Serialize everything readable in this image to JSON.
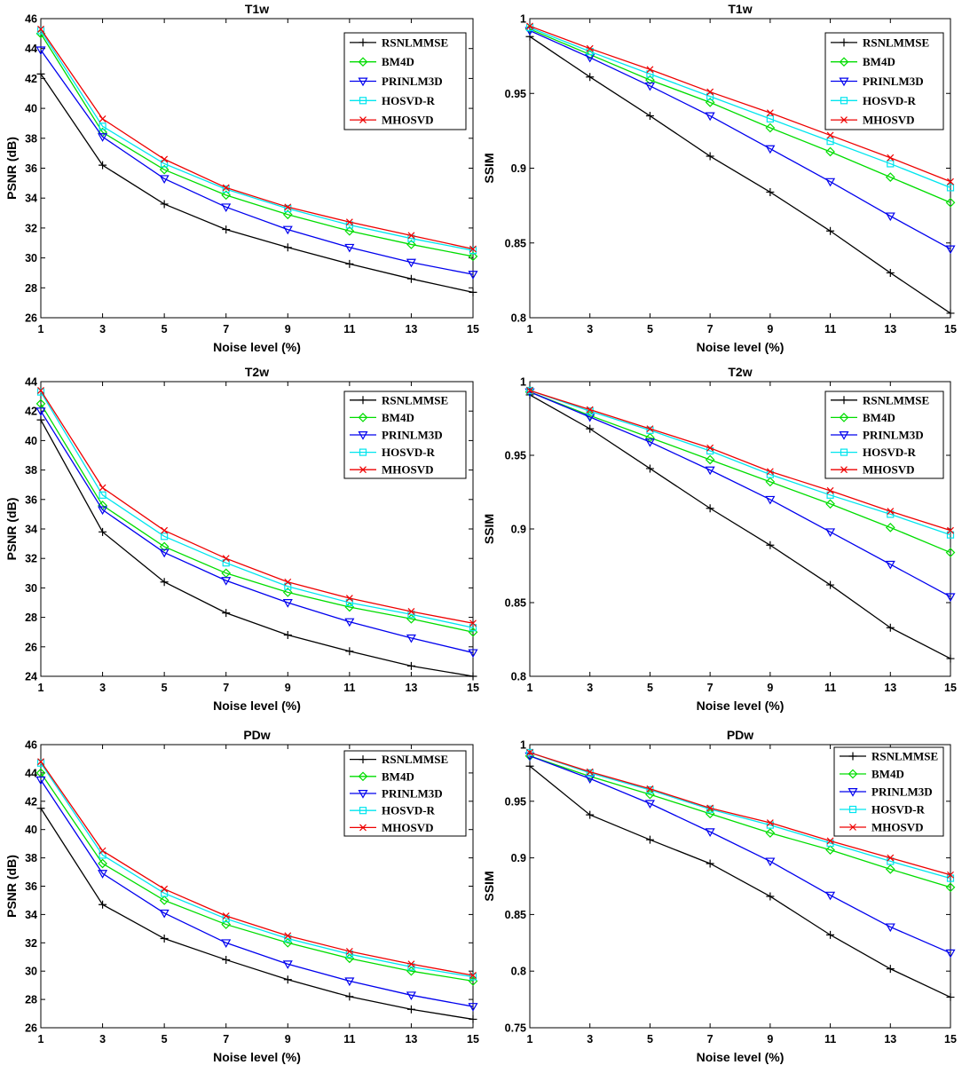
{
  "chart_data": [
    {
      "type": "line",
      "title": "T1w",
      "xlabel": "Noise level (%)",
      "ylabel": "PSNR (dB)",
      "x": [
        1,
        3,
        5,
        7,
        9,
        11,
        13,
        15
      ],
      "xticks": [
        "1",
        "3",
        "5",
        "7",
        "9",
        "11",
        "13",
        "15"
      ],
      "ylim": [
        26,
        46
      ],
      "yticks": [
        "26",
        "28",
        "30",
        "32",
        "34",
        "36",
        "38",
        "40",
        "42",
        "44",
        "46"
      ],
      "legend_position": "top-right",
      "series": [
        {
          "name": "RSNLMMSE",
          "color": "#000000",
          "marker": "plus",
          "values": [
            42.3,
            36.2,
            33.6,
            31.9,
            30.7,
            29.6,
            28.6,
            27.7
          ]
        },
        {
          "name": "BM4D",
          "color": "#00dd00",
          "marker": "diamond",
          "values": [
            45.0,
            38.4,
            35.9,
            34.2,
            32.9,
            31.8,
            30.9,
            30.1
          ]
        },
        {
          "name": "PRINLM3D",
          "color": "#0000ee",
          "marker": "triangle-down",
          "values": [
            43.9,
            38.1,
            35.3,
            33.4,
            31.9,
            30.7,
            29.7,
            28.9
          ]
        },
        {
          "name": "HOSVD-R",
          "color": "#00e5ee",
          "marker": "square",
          "values": [
            45.2,
            38.8,
            36.3,
            34.6,
            33.3,
            32.2,
            31.3,
            30.5
          ]
        },
        {
          "name": "MHOSVD",
          "color": "#ee0000",
          "marker": "x",
          "values": [
            45.3,
            39.3,
            36.6,
            34.7,
            33.4,
            32.4,
            31.5,
            30.6
          ]
        }
      ]
    },
    {
      "type": "line",
      "title": "T1w",
      "xlabel": "Noise level (%)",
      "ylabel": "SSIM",
      "x": [
        1,
        3,
        5,
        7,
        9,
        11,
        13,
        15
      ],
      "xticks": [
        "1",
        "3",
        "5",
        "7",
        "9",
        "11",
        "13",
        "15"
      ],
      "ylim": [
        0.8,
        1.0
      ],
      "yticks": [
        "0.8",
        "0.85",
        "0.9",
        "0.95",
        "1"
      ],
      "legend_position": "top-right",
      "series": [
        {
          "name": "RSNLMMSE",
          "color": "#000000",
          "marker": "plus",
          "values": [
            0.988,
            0.961,
            0.935,
            0.908,
            0.884,
            0.858,
            0.83,
            0.803
          ]
        },
        {
          "name": "BM4D",
          "color": "#00dd00",
          "marker": "diamond",
          "values": [
            0.993,
            0.976,
            0.959,
            0.944,
            0.927,
            0.911,
            0.894,
            0.877
          ]
        },
        {
          "name": "PRINLM3D",
          "color": "#0000ee",
          "marker": "triangle-down",
          "values": [
            0.992,
            0.974,
            0.955,
            0.935,
            0.913,
            0.891,
            0.868,
            0.846
          ]
        },
        {
          "name": "HOSVD-R",
          "color": "#00e5ee",
          "marker": "square",
          "values": [
            0.994,
            0.978,
            0.963,
            0.948,
            0.933,
            0.918,
            0.903,
            0.887
          ]
        },
        {
          "name": "MHOSVD",
          "color": "#ee0000",
          "marker": "x",
          "values": [
            0.995,
            0.98,
            0.966,
            0.951,
            0.937,
            0.922,
            0.907,
            0.891
          ]
        }
      ]
    },
    {
      "type": "line",
      "title": "T2w",
      "xlabel": "Noise level (%)",
      "ylabel": "PSNR (dB)",
      "x": [
        1,
        3,
        5,
        7,
        9,
        11,
        13,
        15
      ],
      "xticks": [
        "1",
        "3",
        "5",
        "7",
        "9",
        "11",
        "13",
        "15"
      ],
      "ylim": [
        24,
        44
      ],
      "yticks": [
        "24",
        "26",
        "28",
        "30",
        "32",
        "34",
        "36",
        "38",
        "40",
        "42",
        "44"
      ],
      "legend_position": "top-right",
      "series": [
        {
          "name": "RSNLMMSE",
          "color": "#000000",
          "marker": "plus",
          "values": [
            41.4,
            33.8,
            30.4,
            28.3,
            26.8,
            25.7,
            24.7,
            24.0
          ]
        },
        {
          "name": "BM4D",
          "color": "#00dd00",
          "marker": "diamond",
          "values": [
            42.5,
            35.6,
            32.8,
            31.0,
            29.7,
            28.7,
            27.9,
            27.0
          ]
        },
        {
          "name": "PRINLM3D",
          "color": "#0000ee",
          "marker": "triangle-down",
          "values": [
            42.0,
            35.3,
            32.4,
            30.5,
            29.0,
            27.7,
            26.6,
            25.6
          ]
        },
        {
          "name": "HOSVD-R",
          "color": "#00e5ee",
          "marker": "square",
          "values": [
            43.3,
            36.3,
            33.5,
            31.7,
            30.1,
            29.0,
            28.2,
            27.3
          ]
        },
        {
          "name": "MHOSVD",
          "color": "#ee0000",
          "marker": "x",
          "values": [
            43.4,
            36.8,
            33.9,
            32.0,
            30.4,
            29.3,
            28.4,
            27.6
          ]
        }
      ]
    },
    {
      "type": "line",
      "title": "T2w",
      "xlabel": "Noise level (%)",
      "ylabel": "SSIM",
      "x": [
        1,
        3,
        5,
        7,
        9,
        11,
        13,
        15
      ],
      "xticks": [
        "1",
        "3",
        "5",
        "7",
        "9",
        "11",
        "13",
        "15"
      ],
      "ylim": [
        0.8,
        1.0
      ],
      "yticks": [
        "0.8",
        "0.85",
        "0.9",
        "0.95",
        "1"
      ],
      "legend_position": "top-right",
      "series": [
        {
          "name": "RSNLMMSE",
          "color": "#000000",
          "marker": "plus",
          "values": [
            0.991,
            0.968,
            0.941,
            0.914,
            0.889,
            0.862,
            0.833,
            0.812
          ]
        },
        {
          "name": "BM4D",
          "color": "#00dd00",
          "marker": "diamond",
          "values": [
            0.993,
            0.977,
            0.962,
            0.947,
            0.932,
            0.917,
            0.901,
            0.884
          ]
        },
        {
          "name": "PRINLM3D",
          "color": "#0000ee",
          "marker": "triangle-down",
          "values": [
            0.993,
            0.976,
            0.959,
            0.94,
            0.92,
            0.898,
            0.876,
            0.854
          ]
        },
        {
          "name": "HOSVD-R",
          "color": "#00e5ee",
          "marker": "square",
          "values": [
            0.994,
            0.98,
            0.967,
            0.953,
            0.937,
            0.923,
            0.91,
            0.896
          ]
        },
        {
          "name": "MHOSVD",
          "color": "#ee0000",
          "marker": "x",
          "values": [
            0.994,
            0.981,
            0.968,
            0.955,
            0.939,
            0.926,
            0.912,
            0.899
          ]
        }
      ]
    },
    {
      "type": "line",
      "title": "PDw",
      "xlabel": "Noise level (%)",
      "ylabel": "PSNR (dB)",
      "x": [
        1,
        3,
        5,
        7,
        9,
        11,
        13,
        15
      ],
      "xticks": [
        "1",
        "3",
        "5",
        "7",
        "9",
        "11",
        "13",
        "15"
      ],
      "ylim": [
        26,
        46
      ],
      "yticks": [
        "26",
        "28",
        "30",
        "32",
        "34",
        "36",
        "38",
        "40",
        "42",
        "44",
        "46"
      ],
      "legend_position": "top-right",
      "series": [
        {
          "name": "RSNLMMSE",
          "color": "#000000",
          "marker": "plus",
          "values": [
            41.5,
            34.7,
            32.3,
            30.8,
            29.4,
            28.2,
            27.3,
            26.6
          ]
        },
        {
          "name": "BM4D",
          "color": "#00dd00",
          "marker": "diamond",
          "values": [
            44.0,
            37.6,
            35.0,
            33.3,
            32.0,
            30.9,
            30.0,
            29.3
          ]
        },
        {
          "name": "PRINLM3D",
          "color": "#0000ee",
          "marker": "triangle-down",
          "values": [
            43.5,
            36.9,
            34.1,
            32.0,
            30.5,
            29.3,
            28.3,
            27.5
          ]
        },
        {
          "name": "HOSVD-R",
          "color": "#00e5ee",
          "marker": "square",
          "values": [
            44.7,
            38.2,
            35.5,
            33.7,
            32.3,
            31.2,
            30.3,
            29.6
          ]
        },
        {
          "name": "MHOSVD",
          "color": "#ee0000",
          "marker": "x",
          "values": [
            44.8,
            38.5,
            35.8,
            33.9,
            32.5,
            31.4,
            30.5,
            29.7
          ]
        }
      ]
    },
    {
      "type": "line",
      "title": "PDw",
      "xlabel": "Noise level (%)",
      "ylabel": "SSIM",
      "x": [
        1,
        3,
        5,
        7,
        9,
        11,
        13,
        15
      ],
      "xticks": [
        "1",
        "3",
        "5",
        "7",
        "9",
        "11",
        "13",
        "15"
      ],
      "ylim": [
        0.75,
        1.0
      ],
      "yticks": [
        "0.75",
        "0.8",
        "0.85",
        "0.9",
        "0.95",
        "1"
      ],
      "legend_position": "top-right",
      "series": [
        {
          "name": "RSNLMMSE",
          "color": "#000000",
          "marker": "plus",
          "values": [
            0.981,
            0.938,
            0.916,
            0.895,
            0.866,
            0.832,
            0.802,
            0.777
          ]
        },
        {
          "name": "BM4D",
          "color": "#00dd00",
          "marker": "diamond",
          "values": [
            0.99,
            0.972,
            0.956,
            0.939,
            0.922,
            0.907,
            0.89,
            0.874
          ]
        },
        {
          "name": "PRINLM3D",
          "color": "#0000ee",
          "marker": "triangle-down",
          "values": [
            0.99,
            0.97,
            0.948,
            0.923,
            0.897,
            0.867,
            0.839,
            0.816
          ]
        },
        {
          "name": "HOSVD-R",
          "color": "#00e5ee",
          "marker": "square",
          "values": [
            0.993,
            0.975,
            0.96,
            0.943,
            0.929,
            0.913,
            0.897,
            0.882
          ]
        },
        {
          "name": "MHOSVD",
          "color": "#ee0000",
          "marker": "x",
          "values": [
            0.993,
            0.976,
            0.961,
            0.944,
            0.931,
            0.915,
            0.9,
            0.885
          ]
        }
      ]
    }
  ]
}
